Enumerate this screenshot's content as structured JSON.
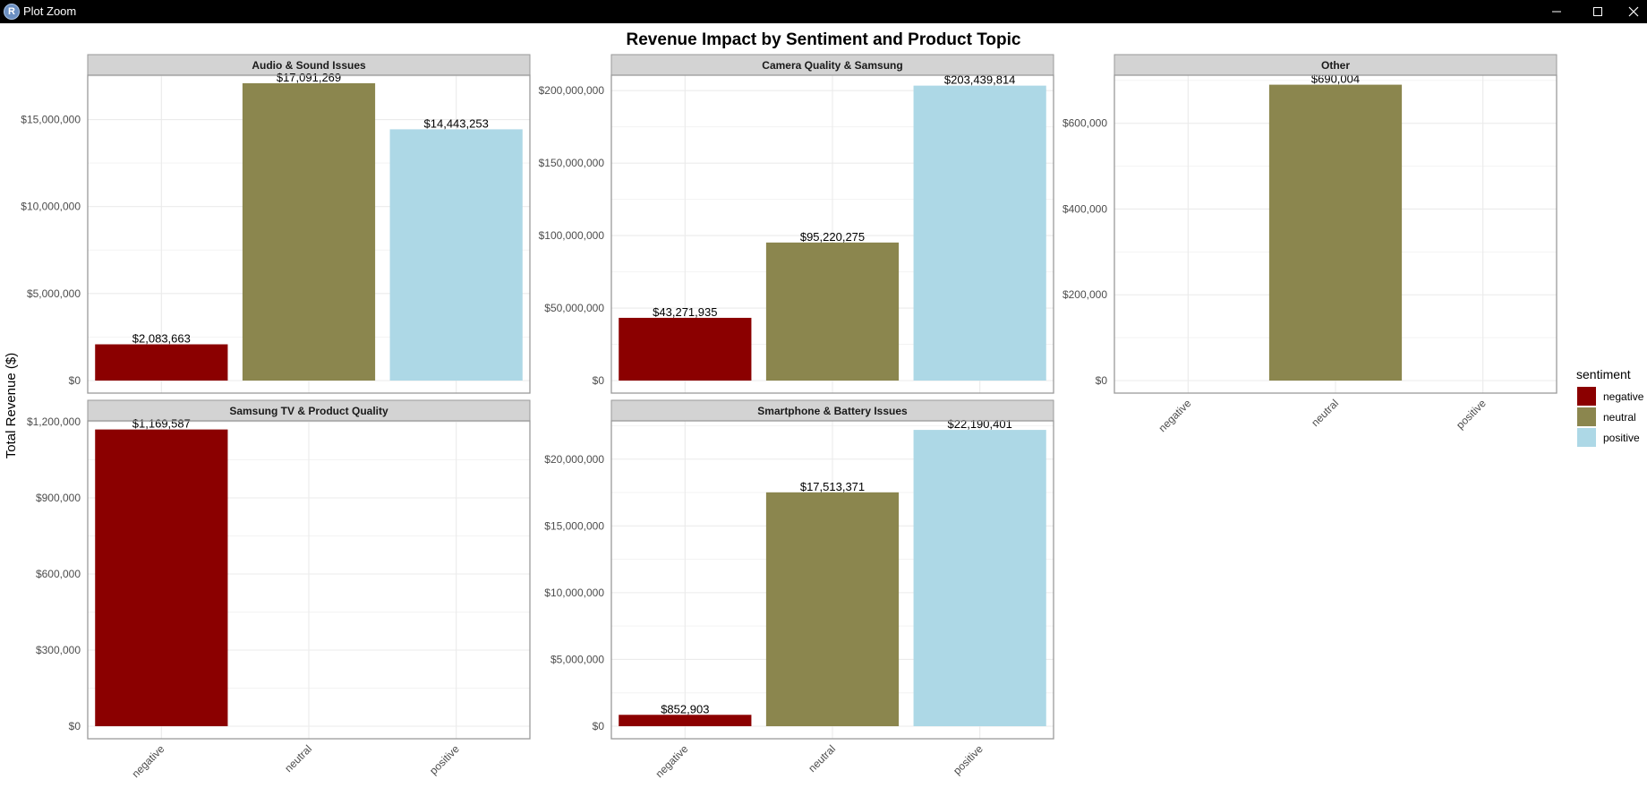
{
  "window": {
    "title": "Plot Zoom",
    "icon_letter": "R",
    "controls": [
      "minimize-icon",
      "maximize-icon",
      "close-icon"
    ]
  },
  "colors": {
    "titlebar": "#000000",
    "strip": "#d3d3d3",
    "grid": "#ebebeb",
    "panel_border": "#9a9a9a",
    "negative": "#8b0000",
    "neutral": "#8b864e",
    "positive": "#add8e6"
  },
  "chart_data": {
    "type": "bar",
    "title": "Revenue Impact by Sentiment and Product Topic",
    "ylabel": "Total Revenue ($)",
    "xlabel": "",
    "categories": [
      "negative",
      "neutral",
      "positive"
    ],
    "legend": {
      "title": "sentiment",
      "placement": "right",
      "entries": [
        {
          "label": "negative",
          "color": "#8b0000"
        },
        {
          "label": "neutral",
          "color": "#8b864e"
        },
        {
          "label": "positive",
          "color": "#add8e6"
        }
      ]
    },
    "grid": true,
    "facets": [
      {
        "name": "Audio & Sound Issues",
        "values": [
          2083663,
          17091269,
          14443253
        ],
        "labels": [
          "$2,083,663",
          "$17,091,269",
          "$14,443,253"
        ],
        "ylim": [
          0,
          17500000
        ],
        "ticks": [
          0,
          5000000,
          10000000,
          15000000
        ],
        "tick_labels": [
          "$0",
          "$5,000,000",
          "$10,000,000",
          "$15,000,000"
        ]
      },
      {
        "name": "Camera Quality & Samsung",
        "values": [
          43271935,
          95220275,
          203439814
        ],
        "labels": [
          "$43,271,935",
          "$95,220,275",
          "$203,439,814"
        ],
        "ylim": [
          0,
          210000000
        ],
        "ticks": [
          0,
          50000000,
          100000000,
          150000000,
          200000000
        ],
        "tick_labels": [
          "$0",
          "$50,000,000",
          "$100,000,000",
          "$150,000,000",
          "$200,000,000"
        ]
      },
      {
        "name": "Other",
        "values": [
          null,
          690004,
          null
        ],
        "labels": [
          "",
          "$690,004",
          ""
        ],
        "ylim": [
          0,
          710000
        ],
        "ticks": [
          0,
          200000,
          400000,
          600000
        ],
        "tick_labels": [
          "$0",
          "$200,000",
          "$400,000",
          "$600,000"
        ]
      },
      {
        "name": "Samsung TV & Product Quality",
        "values": [
          1169587,
          null,
          null
        ],
        "labels": [
          "$1,169,587",
          "",
          ""
        ],
        "ylim": [
          0,
          1200000
        ],
        "ticks": [
          0,
          300000,
          600000,
          900000,
          1200000
        ],
        "tick_labels": [
          "$0",
          "$300,000",
          "$600,000",
          "$900,000",
          "$1,200,000"
        ]
      },
      {
        "name": "Smartphone & Battery Issues",
        "values": [
          852903,
          17513371,
          22190401
        ],
        "labels": [
          "$852,903",
          "$17,513,371",
          "$22,190,401"
        ],
        "ylim": [
          0,
          22800000
        ],
        "ticks": [
          0,
          5000000,
          10000000,
          15000000,
          20000000
        ],
        "tick_labels": [
          "$0",
          "$5,000,000",
          "$10,000,000",
          "$15,000,000",
          "$20,000,000"
        ]
      }
    ]
  }
}
